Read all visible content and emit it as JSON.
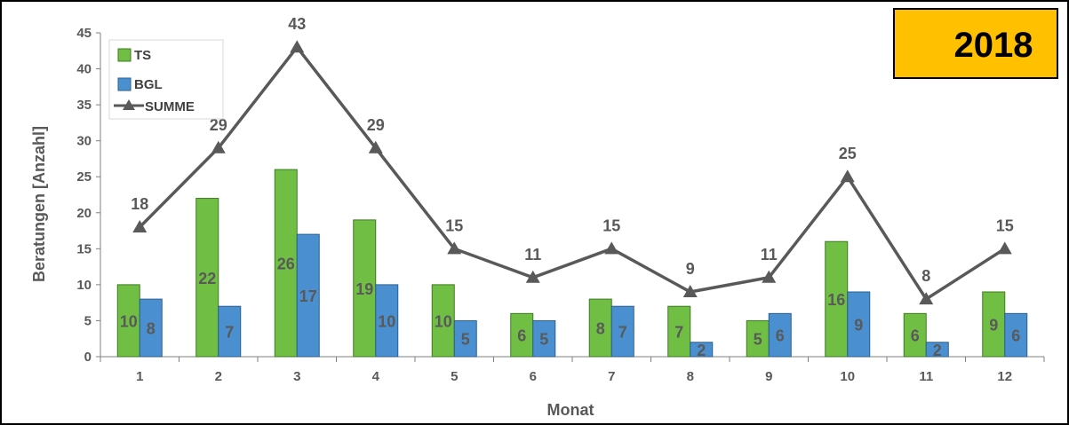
{
  "badge": {
    "year": "2018",
    "color": "#FFC000"
  },
  "chart_data": {
    "type": "bar",
    "categories": [
      "1",
      "2",
      "3",
      "4",
      "5",
      "6",
      "7",
      "8",
      "9",
      "10",
      "11",
      "12"
    ],
    "series": [
      {
        "name": "TS",
        "type": "bar",
        "color": "#70BF44",
        "values": [
          10,
          22,
          26,
          19,
          10,
          6,
          8,
          7,
          5,
          16,
          6,
          9
        ]
      },
      {
        "name": "BGL",
        "type": "bar",
        "color": "#4A90D0",
        "values": [
          8,
          7,
          17,
          10,
          5,
          5,
          7,
          2,
          6,
          9,
          2,
          6
        ]
      },
      {
        "name": "SUMME",
        "type": "line",
        "marker": "triangle",
        "color": "#595959",
        "values": [
          18,
          29,
          43,
          29,
          15,
          11,
          15,
          9,
          11,
          25,
          8,
          15
        ]
      }
    ],
    "xlabel": "Monat",
    "ylabel": "Beratungen [Anzahl]",
    "ylim": [
      0,
      45
    ],
    "yticks": [
      0,
      5,
      10,
      15,
      20,
      25,
      30,
      35,
      40,
      45
    ],
    "grid": false,
    "legend": "top-left"
  }
}
